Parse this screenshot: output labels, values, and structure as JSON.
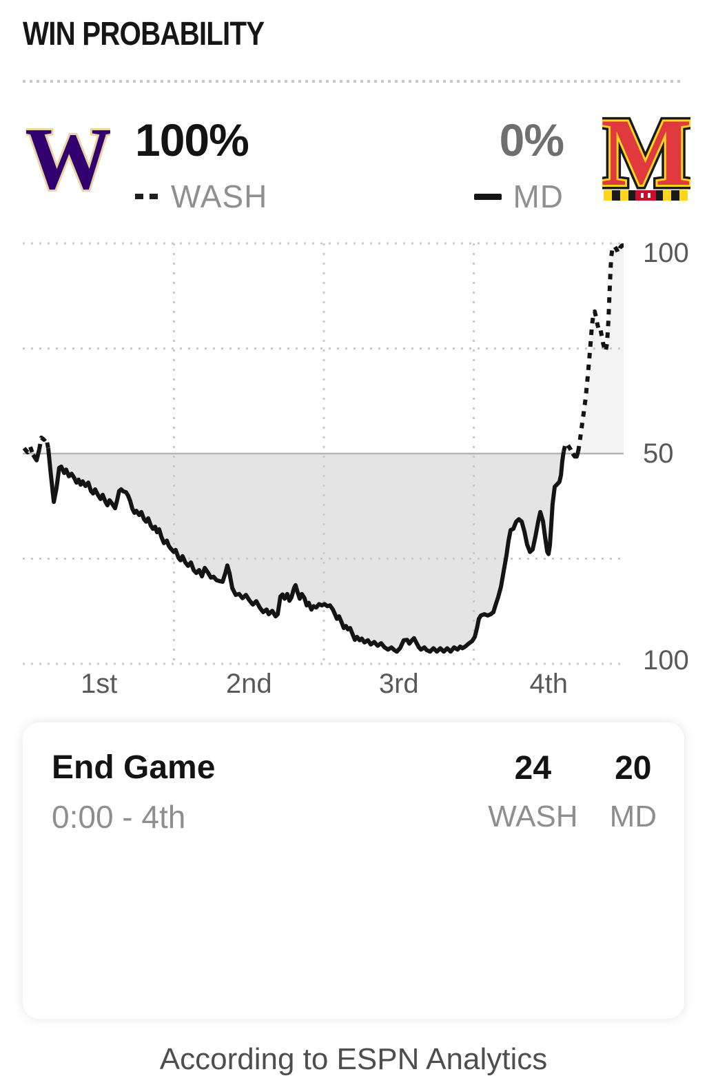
{
  "header": {
    "title": "WIN PROBABILITY"
  },
  "matchup": {
    "away": {
      "abbr": "WASH",
      "win_probability": "100%",
      "logo_letter": "W",
      "line_style": "dashed"
    },
    "home": {
      "abbr": "MD",
      "win_probability": "0%",
      "logo_letter": "M",
      "line_style": "solid"
    }
  },
  "chart_data": {
    "type": "line",
    "title": "WIN PROBABILITY",
    "x_axis": {
      "labels": [
        "1st",
        "2nd",
        "3rd",
        "4th"
      ],
      "range": [
        0,
        4
      ],
      "quarter_gridlines": [
        1,
        2,
        3
      ]
    },
    "y_axis": {
      "ticks": [
        {
          "value": 100,
          "label": "100"
        },
        {
          "value": 50,
          "label": "50"
        },
        {
          "value": 0,
          "label": "100"
        }
      ],
      "dotted_gridlines": [
        100,
        75,
        25,
        0
      ],
      "solid_gridline": 50,
      "description": "WASH win % above midline (dashed), MD win % below midline (solid); value is WASH win probability 0-100"
    },
    "legend_position": "top",
    "series": [
      {
        "name": "WASH win probability (%)",
        "points": [
          [
            0,
            51.3
          ],
          [
            0.023,
            50.3
          ],
          [
            0.041,
            51.6
          ],
          [
            0.06,
            49.7
          ],
          [
            0.083,
            48.4
          ],
          [
            0.101,
            51
          ],
          [
            0.115,
            53.8
          ],
          [
            0.133,
            53.3
          ],
          [
            0.147,
            53.8
          ],
          [
            0.161,
            51.3
          ],
          [
            0.175,
            46.1
          ],
          [
            0.198,
            38.5
          ],
          [
            0.216,
            41.8
          ],
          [
            0.234,
            46.6
          ],
          [
            0.248,
            46.9
          ],
          [
            0.267,
            45.4
          ],
          [
            0.28,
            46.2
          ],
          [
            0.299,
            44.6
          ],
          [
            0.317,
            45.2
          ],
          [
            0.336,
            44.1
          ],
          [
            0.349,
            43.1
          ],
          [
            0.363,
            43.8
          ],
          [
            0.377,
            42.6
          ],
          [
            0.391,
            43.4
          ],
          [
            0.409,
            42.3
          ],
          [
            0.428,
            43.1
          ],
          [
            0.446,
            41.1
          ],
          [
            0.46,
            40.5
          ],
          [
            0.474,
            41.5
          ],
          [
            0.492,
            40.2
          ],
          [
            0.51,
            39.2
          ],
          [
            0.524,
            40.2
          ],
          [
            0.543,
            38.5
          ],
          [
            0.556,
            37.7
          ],
          [
            0.57,
            38.9
          ],
          [
            0.589,
            38
          ],
          [
            0.607,
            37
          ],
          [
            0.621,
            39
          ],
          [
            0.634,
            41.1
          ],
          [
            0.648,
            41.5
          ],
          [
            0.662,
            41
          ],
          [
            0.68,
            40.8
          ],
          [
            0.694,
            40
          ],
          [
            0.708,
            38.7
          ],
          [
            0.722,
            36.9
          ],
          [
            0.736,
            35.9
          ],
          [
            0.749,
            36.4
          ],
          [
            0.768,
            35.4
          ],
          [
            0.782,
            36.1
          ],
          [
            0.8,
            34.4
          ],
          [
            0.814,
            33.8
          ],
          [
            0.828,
            34.6
          ],
          [
            0.846,
            32.8
          ],
          [
            0.86,
            32.1
          ],
          [
            0.874,
            32.6
          ],
          [
            0.887,
            31.3
          ],
          [
            0.901,
            32
          ],
          [
            0.915,
            30.3
          ],
          [
            0.933,
            28.7
          ],
          [
            0.952,
            29.3
          ],
          [
            0.966,
            28
          ],
          [
            0.979,
            27.4
          ],
          [
            0.998,
            26.6
          ],
          [
            1.011,
            27.1
          ],
          [
            1.03,
            25.2
          ],
          [
            1.044,
            24.6
          ],
          [
            1.057,
            25.6
          ],
          [
            1.076,
            24.1
          ],
          [
            1.094,
            23.3
          ],
          [
            1.113,
            24.1
          ],
          [
            1.131,
            22.3
          ],
          [
            1.149,
            21.6
          ],
          [
            1.168,
            22.3
          ],
          [
            1.186,
            20.8
          ],
          [
            1.205,
            22.8
          ],
          [
            1.228,
            21.6
          ],
          [
            1.246,
            20.5
          ],
          [
            1.264,
            20.7
          ],
          [
            1.283,
            19.9
          ],
          [
            1.301,
            19.7
          ],
          [
            1.324,
            19.5
          ],
          [
            1.343,
            21.6
          ],
          [
            1.356,
            23.4
          ],
          [
            1.37,
            21.6
          ],
          [
            1.389,
            18
          ],
          [
            1.412,
            16.4
          ],
          [
            1.435,
            16.6
          ],
          [
            1.457,
            15.6
          ],
          [
            1.48,
            16.4
          ],
          [
            1.503,
            15.1
          ],
          [
            1.526,
            14.1
          ],
          [
            1.549,
            14.9
          ],
          [
            1.572,
            13.4
          ],
          [
            1.595,
            12.3
          ],
          [
            1.618,
            12.9
          ],
          [
            1.632,
            11.8
          ],
          [
            1.655,
            12.6
          ],
          [
            1.678,
            11.3
          ],
          [
            1.692,
            11.8
          ],
          [
            1.71,
            16
          ],
          [
            1.724,
            16.5
          ],
          [
            1.738,
            15.5
          ],
          [
            1.756,
            16.6
          ],
          [
            1.77,
            15
          ],
          [
            1.784,
            15.8
          ],
          [
            1.802,
            18.1
          ],
          [
            1.811,
            18.7
          ],
          [
            1.825,
            17
          ],
          [
            1.839,
            15.5
          ],
          [
            1.853,
            16.6
          ],
          [
            1.871,
            15.6
          ],
          [
            1.885,
            13.9
          ],
          [
            1.899,
            14.5
          ],
          [
            1.917,
            12.9
          ],
          [
            1.931,
            13.7
          ],
          [
            1.949,
            13.4
          ],
          [
            1.968,
            14.2
          ],
          [
            1.986,
            13.9
          ],
          [
            2.005,
            14.2
          ],
          [
            2.023,
            13.7
          ],
          [
            2.041,
            13.9
          ],
          [
            2.06,
            12.9
          ],
          [
            2.074,
            11.8
          ],
          [
            2.087,
            10.7
          ],
          [
            2.101,
            11.3
          ],
          [
            2.12,
            9.7
          ],
          [
            2.133,
            8.5
          ],
          [
            2.147,
            9
          ],
          [
            2.161,
            8.2
          ],
          [
            2.175,
            8.5
          ],
          [
            2.193,
            6.9
          ],
          [
            2.207,
            5.7
          ],
          [
            2.221,
            6.4
          ],
          [
            2.239,
            5.6
          ],
          [
            2.253,
            6
          ],
          [
            2.271,
            5.1
          ],
          [
            2.294,
            5.6
          ],
          [
            2.313,
            4.6
          ],
          [
            2.336,
            5.2
          ],
          [
            2.359,
            4.3
          ],
          [
            2.382,
            4.9
          ],
          [
            2.405,
            3.9
          ],
          [
            2.428,
            3.4
          ],
          [
            2.451,
            3.9
          ],
          [
            2.469,
            3.3
          ],
          [
            2.487,
            2.9
          ],
          [
            2.51,
            3.8
          ],
          [
            2.533,
            5.6
          ],
          [
            2.556,
            5.7
          ],
          [
            2.57,
            4.8
          ],
          [
            2.588,
            5.6
          ],
          [
            2.602,
            6.1
          ],
          [
            2.616,
            5.1
          ],
          [
            2.634,
            3.9
          ],
          [
            2.648,
            3.4
          ],
          [
            2.671,
            3.9
          ],
          [
            2.685,
            3.3
          ],
          [
            2.708,
            2.9
          ],
          [
            2.731,
            3.7
          ],
          [
            2.754,
            2.9
          ],
          [
            2.777,
            3.7
          ],
          [
            2.8,
            2.9
          ],
          [
            2.823,
            3.7
          ],
          [
            2.846,
            2.9
          ],
          [
            2.869,
            3.9
          ],
          [
            2.892,
            3.4
          ],
          [
            2.91,
            4.1
          ],
          [
            2.924,
            3.7
          ],
          [
            2.943,
            4.1
          ],
          [
            2.966,
            4.8
          ],
          [
            2.989,
            5.4
          ],
          [
            3.007,
            6.4
          ],
          [
            3.021,
            8.4
          ],
          [
            3.034,
            10.7
          ],
          [
            3.048,
            11.5
          ],
          [
            3.071,
            11.8
          ],
          [
            3.094,
            11.5
          ],
          [
            3.113,
            11.8
          ],
          [
            3.131,
            12.3
          ],
          [
            3.145,
            13.9
          ],
          [
            3.163,
            15.9
          ],
          [
            3.182,
            18.4
          ],
          [
            3.2,
            22.1
          ],
          [
            3.218,
            25.7
          ],
          [
            3.232,
            29.3
          ],
          [
            3.246,
            31.8
          ],
          [
            3.264,
            32.1
          ],
          [
            3.283,
            33.8
          ],
          [
            3.301,
            34.4
          ],
          [
            3.32,
            33.8
          ],
          [
            3.338,
            31.5
          ],
          [
            3.356,
            28.4
          ],
          [
            3.375,
            26.6
          ],
          [
            3.393,
            27.2
          ],
          [
            3.411,
            30.2
          ],
          [
            3.43,
            33.8
          ],
          [
            3.444,
            36.1
          ],
          [
            3.462,
            33.9
          ],
          [
            3.476,
            30.2
          ],
          [
            3.49,
            26.7
          ],
          [
            3.499,
            26.1
          ],
          [
            3.508,
            28.2
          ],
          [
            3.517,
            32.8
          ],
          [
            3.526,
            38
          ],
          [
            3.54,
            42.1
          ],
          [
            3.559,
            42.8
          ],
          [
            3.572,
            43.3
          ],
          [
            3.582,
            44.9
          ],
          [
            3.591,
            48.2
          ],
          [
            3.6,
            50.5
          ],
          [
            3.614,
            52.5
          ],
          [
            3.628,
            52
          ],
          [
            3.646,
            51
          ],
          [
            3.66,
            50
          ],
          [
            3.674,
            49.3
          ],
          [
            3.687,
            49.3
          ],
          [
            3.697,
            50.5
          ],
          [
            3.706,
            52.6
          ],
          [
            3.72,
            56.2
          ],
          [
            3.733,
            59.5
          ],
          [
            3.747,
            63.4
          ],
          [
            3.761,
            68.5
          ],
          [
            3.775,
            74.3
          ],
          [
            3.789,
            80.5
          ],
          [
            3.798,
            83.1
          ],
          [
            3.807,
            83.8
          ],
          [
            3.816,
            82.5
          ],
          [
            3.825,
            80.8
          ],
          [
            3.834,
            79.5
          ],
          [
            3.844,
            79.8
          ],
          [
            3.853,
            78.2
          ],
          [
            3.862,
            76.4
          ],
          [
            3.871,
            75.1
          ],
          [
            3.88,
            74.3
          ],
          [
            3.889,
            76.2
          ],
          [
            3.899,
            81.8
          ],
          [
            3.908,
            90
          ],
          [
            3.917,
            96.6
          ],
          [
            3.926,
            99
          ],
          [
            3.94,
            99.3
          ],
          [
            3.954,
            98.5
          ],
          [
            3.963,
            97.7
          ],
          [
            3.977,
            99
          ],
          [
            3.99,
            99.5
          ],
          [
            4,
            99.5
          ]
        ]
      }
    ]
  },
  "scorebox": {
    "event": "End Game",
    "clock": "0:00 - 4th",
    "teams": [
      {
        "abbr": "WASH",
        "score": "24"
      },
      {
        "abbr": "MD",
        "score": "20"
      }
    ]
  },
  "footer": {
    "attribution": "According to ESPN Analytics"
  },
  "style": {
    "wash_purple": "#32006e",
    "wash_cream": "#e8d3a2",
    "md_red": "#e03a3e",
    "md_gold": "#ffd520",
    "md_black": "#1a1a1a",
    "md_flag_red": "#c8102e",
    "line_color": "#141414",
    "fill_below": "#e4e4e4",
    "fill_above": "#f3f3f3",
    "grid_dot": "#c9c9c9",
    "midline": "#b5b5b5",
    "axis_label": "#595959"
  }
}
